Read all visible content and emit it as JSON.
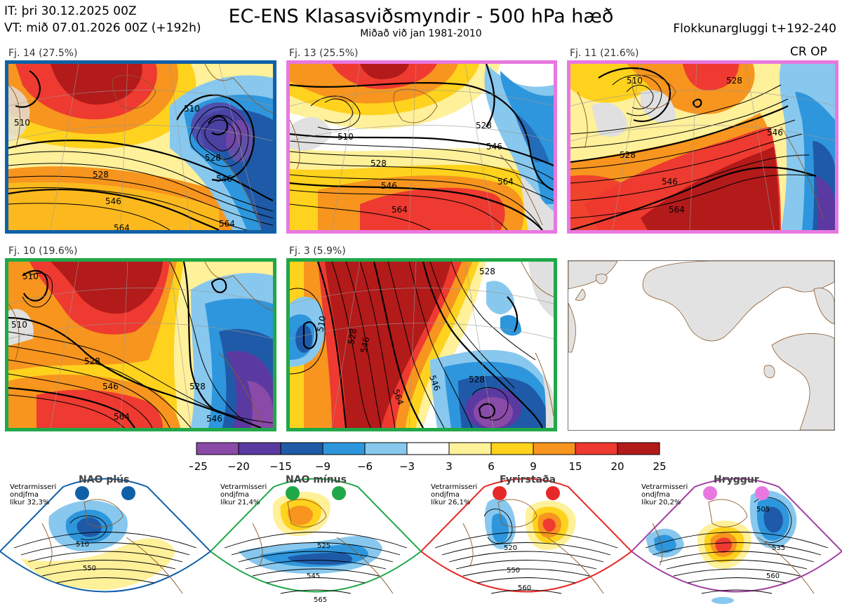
{
  "header": {
    "it": "IT: þri 30.12.2025 00Z",
    "vt": "VT: mið 07.01.2026 00Z  (+192h)",
    "title": "EC-ENS Klasasviðsmyndir - 500 hPa hæð",
    "subtitle": "Miðað við jan 1981-2010",
    "window": "Flokkunargluggi t+192-240"
  },
  "clusters": [
    {
      "label": "Fj. 14 (27.5%)",
      "border_color": "#1060a8",
      "contours": [
        "510",
        "528",
        "546",
        "564",
        "510",
        "528",
        "546",
        "564"
      ]
    },
    {
      "label": "Fj. 13 (25.5%)",
      "border_color": "#e878e0",
      "contours": [
        "510",
        "528",
        "546",
        "564",
        "546",
        "564",
        "528"
      ]
    },
    {
      "label": "Fj. 11 (21.6%)",
      "border_color": "#e878e0",
      "contours": [
        "510",
        "528",
        "546",
        "564",
        "528",
        "546"
      ],
      "tag": "CR OP"
    },
    {
      "label": "Fj. 10 (19.6%)",
      "border_color": "#20a848",
      "contours": [
        "510",
        "528",
        "546",
        "564",
        "528",
        "546",
        "510"
      ]
    },
    {
      "label": "Fj. 3 (5.9%)",
      "border_color": "#20a848",
      "contours": [
        "510",
        "528",
        "546",
        "564",
        "528",
        "546",
        "528"
      ]
    }
  ],
  "colorbar": {
    "ticks": [
      "−25",
      "−20",
      "−15",
      "−9",
      "−6",
      "−3",
      "3",
      "6",
      "9",
      "15",
      "20",
      "25"
    ],
    "colors": [
      "#8a4aa8",
      "#5a3aa0",
      "#1f5aa8",
      "#2e96dc",
      "#88c8ee",
      "#ffffff",
      "#fff09a",
      "#ffd21e",
      "#f7951e",
      "#ee3a30",
      "#b31a1a"
    ]
  },
  "regimes": [
    {
      "name": "NAO plús",
      "info": "Vetrarmisseri\nondjfma\nlíkur 32,3%",
      "color": "#1060a8",
      "contours": [
        "510",
        "550"
      ]
    },
    {
      "name": "NAO mínus",
      "info": "Vetrarmisseri\nondjfma\nlíkur 21,4%",
      "color": "#20a848",
      "contours": [
        "525",
        "545",
        "565"
      ]
    },
    {
      "name": "Fyrirstaða",
      "info": "Vetrarmisseri\nondjfma\nlíkur 26,1%",
      "color": "#e82828",
      "contours": [
        "520",
        "550",
        "560"
      ]
    },
    {
      "name": "Hryggur",
      "info": "Vetrarmisseri\nondjfma\nlíkur 20,2%",
      "color": "#a040a0",
      "contours": [
        "505",
        "535",
        "560"
      ]
    }
  ]
}
